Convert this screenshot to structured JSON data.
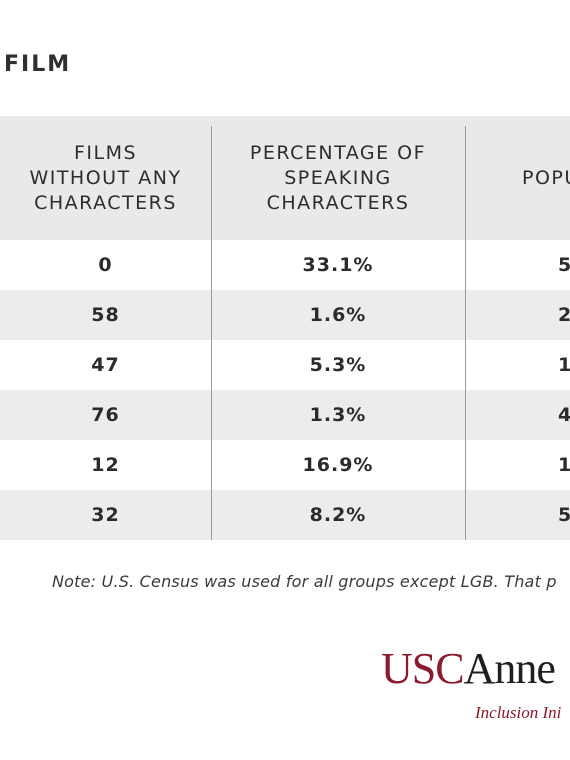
{
  "title": "FILM",
  "table": {
    "headers": [
      "FILMS\nWITHOUT ANY\nCHARACTERS",
      "PERCENTAGE OF\nSPEAKING\nCHARACTERS",
      "POPU"
    ],
    "rows": [
      [
        "0",
        "33.1%",
        "5"
      ],
      [
        "58",
        "1.6%",
        "2"
      ],
      [
        "47",
        "5.3%",
        "1"
      ],
      [
        "76",
        "1.3%",
        "4"
      ],
      [
        "12",
        "16.9%",
        "1"
      ],
      [
        "32",
        "8.2%",
        "5"
      ]
    ]
  },
  "note": "Note: U.S. Census was used for all groups except LGB. That p",
  "logo": {
    "usc": "USC",
    "annen": "Anne",
    "tagline": "Inclusion Ini"
  },
  "colors": {
    "header_bg": "#e9e9e9",
    "stripe_bg": "#ececec",
    "brand": "#8a1a2e"
  }
}
